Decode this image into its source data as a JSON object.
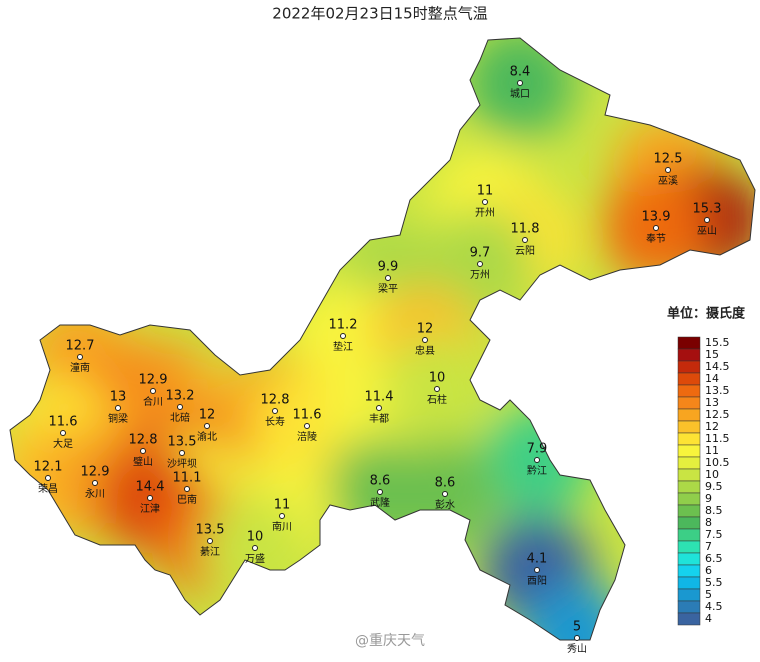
{
  "title": "2022年02月23日15时整点气温",
  "stations": [
    {
      "name": "城口",
      "value": 8.4
    },
    {
      "name": "巫溪",
      "value": 12.5
    },
    {
      "name": "开州",
      "value": 11
    },
    {
      "name": "巫山",
      "value": 15.3
    },
    {
      "name": "奉节",
      "value": 13.9
    },
    {
      "name": "云阳",
      "value": 11.8
    },
    {
      "name": "万州",
      "value": 9.7
    },
    {
      "name": "梁平",
      "value": 9.9
    },
    {
      "name": "垫江",
      "value": 11.2
    },
    {
      "name": "忠县",
      "value": 12
    },
    {
      "name": "潼南",
      "value": 12.7
    },
    {
      "name": "合川",
      "value": 12.9
    },
    {
      "name": "铜梁",
      "value": 13
    },
    {
      "name": "北碚",
      "value": 13.2
    },
    {
      "name": "渝北",
      "value": 12
    },
    {
      "name": "长寿",
      "value": 12.8
    },
    {
      "name": "涪陵",
      "value": 11.6
    },
    {
      "name": "丰都",
      "value": 11.4
    },
    {
      "name": "石柱",
      "value": 10
    },
    {
      "name": "大足",
      "value": 11.6
    },
    {
      "name": "璧山",
      "value": 12.8
    },
    {
      "name": "沙坪坝",
      "value": 13.5
    },
    {
      "name": "荣昌",
      "value": 12.1
    },
    {
      "name": "永川",
      "value": 12.9
    },
    {
      "name": "巴南",
      "value": 11.1
    },
    {
      "name": "江津",
      "value": 14.4
    },
    {
      "name": "黔江",
      "value": 7.9
    },
    {
      "name": "武隆",
      "value": 8.6
    },
    {
      "name": "彭水",
      "value": 8.6
    },
    {
      "name": "南川",
      "value": 11
    },
    {
      "name": "綦江",
      "value": 13.5
    },
    {
      "name": "万盛",
      "value": 10
    },
    {
      "name": "酉阳",
      "value": 4.1
    },
    {
      "name": "秀山",
      "value": 5
    }
  ],
  "legend": {
    "title": "单位：摄氏度",
    "levels": [
      15.5,
      15,
      14.5,
      14,
      13.5,
      13,
      12.5,
      12,
      11.5,
      11,
      10.5,
      10,
      9.5,
      9,
      8.5,
      8,
      7.5,
      7,
      6.5,
      6,
      5.5,
      5,
      4.5,
      4
    ],
    "colors": [
      "#7a0000",
      "#a50f0f",
      "#c42a0b",
      "#dd4a0a",
      "#ee6a10",
      "#f5861a",
      "#f8a520",
      "#fbc12a",
      "#fde334",
      "#f8f43c",
      "#e5ef3e",
      "#c9e443",
      "#acd947",
      "#90ce4b",
      "#6cc04f",
      "#4cb85c",
      "#3ccf86",
      "#2de2b2",
      "#1fe3d9",
      "#15d2ee",
      "#10b6e6",
      "#1a98d0",
      "#2b7cb6",
      "#3a64a0"
    ]
  },
  "watermark": "@重庆天气"
}
